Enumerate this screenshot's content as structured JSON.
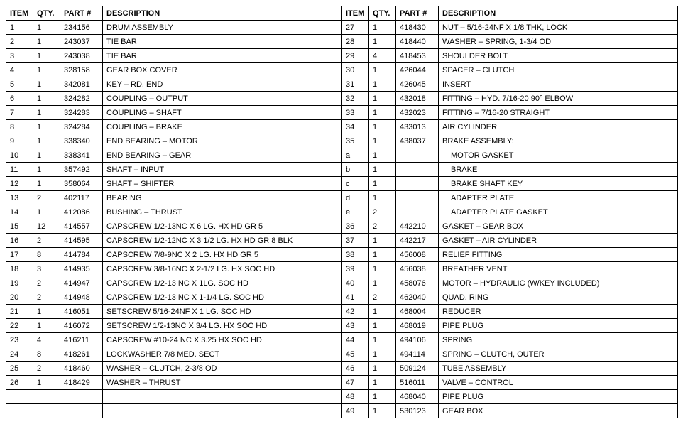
{
  "headers": {
    "item": "ITEM",
    "qty": "QTY.",
    "part": "PART #",
    "desc": "DESCRIPTION"
  },
  "left": [
    {
      "item": "1",
      "qty": "1",
      "part": "234156",
      "desc": "DRUM ASSEMBLY"
    },
    {
      "item": "2",
      "qty": "1",
      "part": "243037",
      "desc": "TIE BAR"
    },
    {
      "item": "3",
      "qty": "1",
      "part": "243038",
      "desc": "TIE BAR"
    },
    {
      "item": "4",
      "qty": "1",
      "part": "328158",
      "desc": "GEAR BOX COVER"
    },
    {
      "item": "5",
      "qty": "1",
      "part": "342081",
      "desc": "KEY – RD. END"
    },
    {
      "item": "6",
      "qty": "1",
      "part": "324282",
      "desc": "COUPLING – OUTPUT"
    },
    {
      "item": "7",
      "qty": "1",
      "part": "324283",
      "desc": "COUPLING – SHAFT"
    },
    {
      "item": "8",
      "qty": "1",
      "part": "324284",
      "desc": "COUPLING – BRAKE"
    },
    {
      "item": "9",
      "qty": "1",
      "part": "338340",
      "desc": "END BEARING – MOTOR"
    },
    {
      "item": "10",
      "qty": "1",
      "part": "338341",
      "desc": "END BEARING – GEAR"
    },
    {
      "item": "11",
      "qty": "1",
      "part": "357492",
      "desc": "SHAFT – INPUT"
    },
    {
      "item": "12",
      "qty": "1",
      "part": "358064",
      "desc": "SHAFT – SHIFTER"
    },
    {
      "item": "13",
      "qty": "2",
      "part": "402117",
      "desc": "BEARING"
    },
    {
      "item": "14",
      "qty": "1",
      "part": "412086",
      "desc": "BUSHING – THRUST"
    },
    {
      "item": "15",
      "qty": "12",
      "part": "414557",
      "desc": "CAPSCREW 1/2-13NC X 6 LG. HX HD GR 5"
    },
    {
      "item": "16",
      "qty": "2",
      "part": "414595",
      "desc": "CAPSCREW 1/2-12NC X 3 1/2 LG. HX HD GR 8 BLK"
    },
    {
      "item": "17",
      "qty": "8",
      "part": "414784",
      "desc": "CAPSCREW 7/8-9NC X 2 LG. HX HD GR 5"
    },
    {
      "item": "18",
      "qty": "3",
      "part": "414935",
      "desc": "CAPSCREW 3/8-16NC X 2-1/2 LG. HX SOC HD"
    },
    {
      "item": "19",
      "qty": "2",
      "part": "414947",
      "desc": "CAPSCREW 1/2-13 NC X 1LG. SOC HD"
    },
    {
      "item": "20",
      "qty": "2",
      "part": "414948",
      "desc": "CAPSCREW 1/2-13 NC X 1-1/4 LG. SOC HD"
    },
    {
      "item": "21",
      "qty": "1",
      "part": "416051",
      "desc": "SETSCREW 5/16-24NF X 1 LG. SOC HD"
    },
    {
      "item": "22",
      "qty": "1",
      "part": "416072",
      "desc": "SETSCREW 1/2-13NC X 3/4 LG. HX SOC HD"
    },
    {
      "item": "23",
      "qty": "4",
      "part": "416211",
      "desc": "CAPSCREW #10-24 NC X 3.25 HX SOC HD"
    },
    {
      "item": "24",
      "qty": "8",
      "part": "418261",
      "desc": "LOCKWASHER 7/8 MED. SECT"
    },
    {
      "item": "25",
      "qty": "2",
      "part": "418460",
      "desc": "WASHER – CLUTCH, 2-3/8 OD"
    },
    {
      "item": "26",
      "qty": "1",
      "part": "418429",
      "desc": "WASHER – THRUST"
    },
    {
      "item": "",
      "qty": "",
      "part": "",
      "desc": ""
    },
    {
      "item": "",
      "qty": "",
      "part": "",
      "desc": ""
    }
  ],
  "right": [
    {
      "item": "27",
      "qty": "1",
      "part": "418430",
      "desc": "NUT – 5/16-24NF X 1/8 THK, LOCK"
    },
    {
      "item": "28",
      "qty": "1",
      "part": "418440",
      "desc": "WASHER – SPRING, 1-3/4 OD"
    },
    {
      "item": "29",
      "qty": "4",
      "part": "418453",
      "desc": "SHOULDER BOLT"
    },
    {
      "item": "30",
      "qty": "1",
      "part": "426044",
      "desc": "SPACER – CLUTCH"
    },
    {
      "item": "31",
      "qty": "1",
      "part": "426045",
      "desc": "INSERT"
    },
    {
      "item": "32",
      "qty": "1",
      "part": "432018",
      "desc": "FITTING – HYD. 7/16-20 90° ELBOW"
    },
    {
      "item": "33",
      "qty": "1",
      "part": "432023",
      "desc": "FITTING – 7/16-20 STRAIGHT"
    },
    {
      "item": "34",
      "qty": "1",
      "part": "433013",
      "desc": "AIR CYLINDER"
    },
    {
      "item": "35",
      "qty": "1",
      "part": "438037",
      "desc": "BRAKE ASSEMBLY:"
    },
    {
      "item": "a",
      "qty": "1",
      "part": "",
      "desc": "MOTOR GASKET",
      "sub": true,
      "itemAlign": "right"
    },
    {
      "item": "b",
      "qty": "1",
      "part": "",
      "desc": "BRAKE",
      "sub": true,
      "itemAlign": "right"
    },
    {
      "item": "c",
      "qty": "1",
      "part": "",
      "desc": "BRAKE SHAFT KEY",
      "sub": true,
      "itemAlign": "right"
    },
    {
      "item": "d",
      "qty": "1",
      "part": "",
      "desc": "ADAPTER PLATE",
      "sub": true,
      "itemAlign": "right"
    },
    {
      "item": "e",
      "qty": "2",
      "part": "",
      "desc": "ADAPTER PLATE GASKET",
      "sub": true,
      "itemAlign": "right"
    },
    {
      "item": "36",
      "qty": "2",
      "part": "442210",
      "desc": "GASKET – GEAR BOX"
    },
    {
      "item": "37",
      "qty": "1",
      "part": "442217",
      "desc": "GASKET – AIR CYLINDER"
    },
    {
      "item": "38",
      "qty": "1",
      "part": "456008",
      "desc": "RELIEF FITTING"
    },
    {
      "item": "39",
      "qty": "1",
      "part": "456038",
      "desc": "BREATHER VENT"
    },
    {
      "item": "40",
      "qty": "1",
      "part": "458076",
      "desc": "MOTOR – HYDRAULIC (W/KEY INCLUDED)"
    },
    {
      "item": "41",
      "qty": "2",
      "part": "462040",
      "desc": "QUAD. RING"
    },
    {
      "item": "42",
      "qty": "1",
      "part": "468004",
      "desc": "REDUCER"
    },
    {
      "item": "43",
      "qty": "1",
      "part": "468019",
      "desc": "PIPE PLUG"
    },
    {
      "item": "44",
      "qty": "1",
      "part": "494106",
      "desc": "SPRING"
    },
    {
      "item": "45",
      "qty": "1",
      "part": "494114",
      "desc": "SPRING – CLUTCH, OUTER"
    },
    {
      "item": "46",
      "qty": "1",
      "part": "509124",
      "desc": "TUBE ASSEMBLY"
    },
    {
      "item": "47",
      "qty": "1",
      "part": "516011",
      "desc": "VALVE – CONTROL"
    },
    {
      "item": "48",
      "qty": "1",
      "part": "468040",
      "desc": "PIPE PLUG"
    },
    {
      "item": "49",
      "qty": "1",
      "part": "530123",
      "desc": "GEAR BOX"
    }
  ]
}
